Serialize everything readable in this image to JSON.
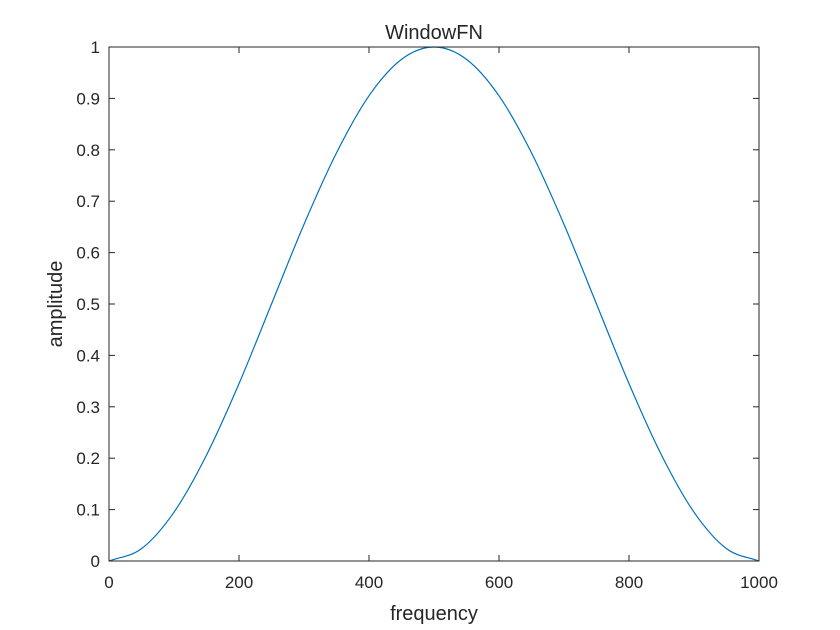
{
  "chart_data": {
    "type": "line",
    "title": "WindowFN",
    "xlabel": "frequency",
    "ylabel": "amplitude",
    "xlim": [
      0,
      1000
    ],
    "ylim": [
      0,
      1
    ],
    "xticks": [
      0,
      200,
      400,
      600,
      800,
      1000
    ],
    "yticks": [
      0,
      0.1,
      0.2,
      0.3,
      0.4,
      0.5,
      0.6,
      0.7,
      0.8,
      0.9,
      1
    ],
    "xtick_labels": [
      "0",
      "200",
      "400",
      "600",
      "800",
      "1000"
    ],
    "ytick_labels": [
      "0",
      "0.1",
      "0.2",
      "0.3",
      "0.4",
      "0.5",
      "0.6",
      "0.7",
      "0.8",
      "0.9",
      "1"
    ],
    "grid": false,
    "legend": "none",
    "series": [
      {
        "color": "#0072BD",
        "x": [
          0,
          50,
          100,
          150,
          200,
          250,
          300,
          350,
          400,
          450,
          500,
          550,
          600,
          650,
          700,
          750,
          800,
          850,
          900,
          950,
          1000
        ],
        "y": [
          0,
          0.024,
          0.095,
          0.206,
          0.345,
          0.5,
          0.655,
          0.794,
          0.905,
          0.976,
          1,
          0.976,
          0.905,
          0.794,
          0.655,
          0.5,
          0.345,
          0.206,
          0.095,
          0.024,
          0
        ]
      }
    ]
  }
}
